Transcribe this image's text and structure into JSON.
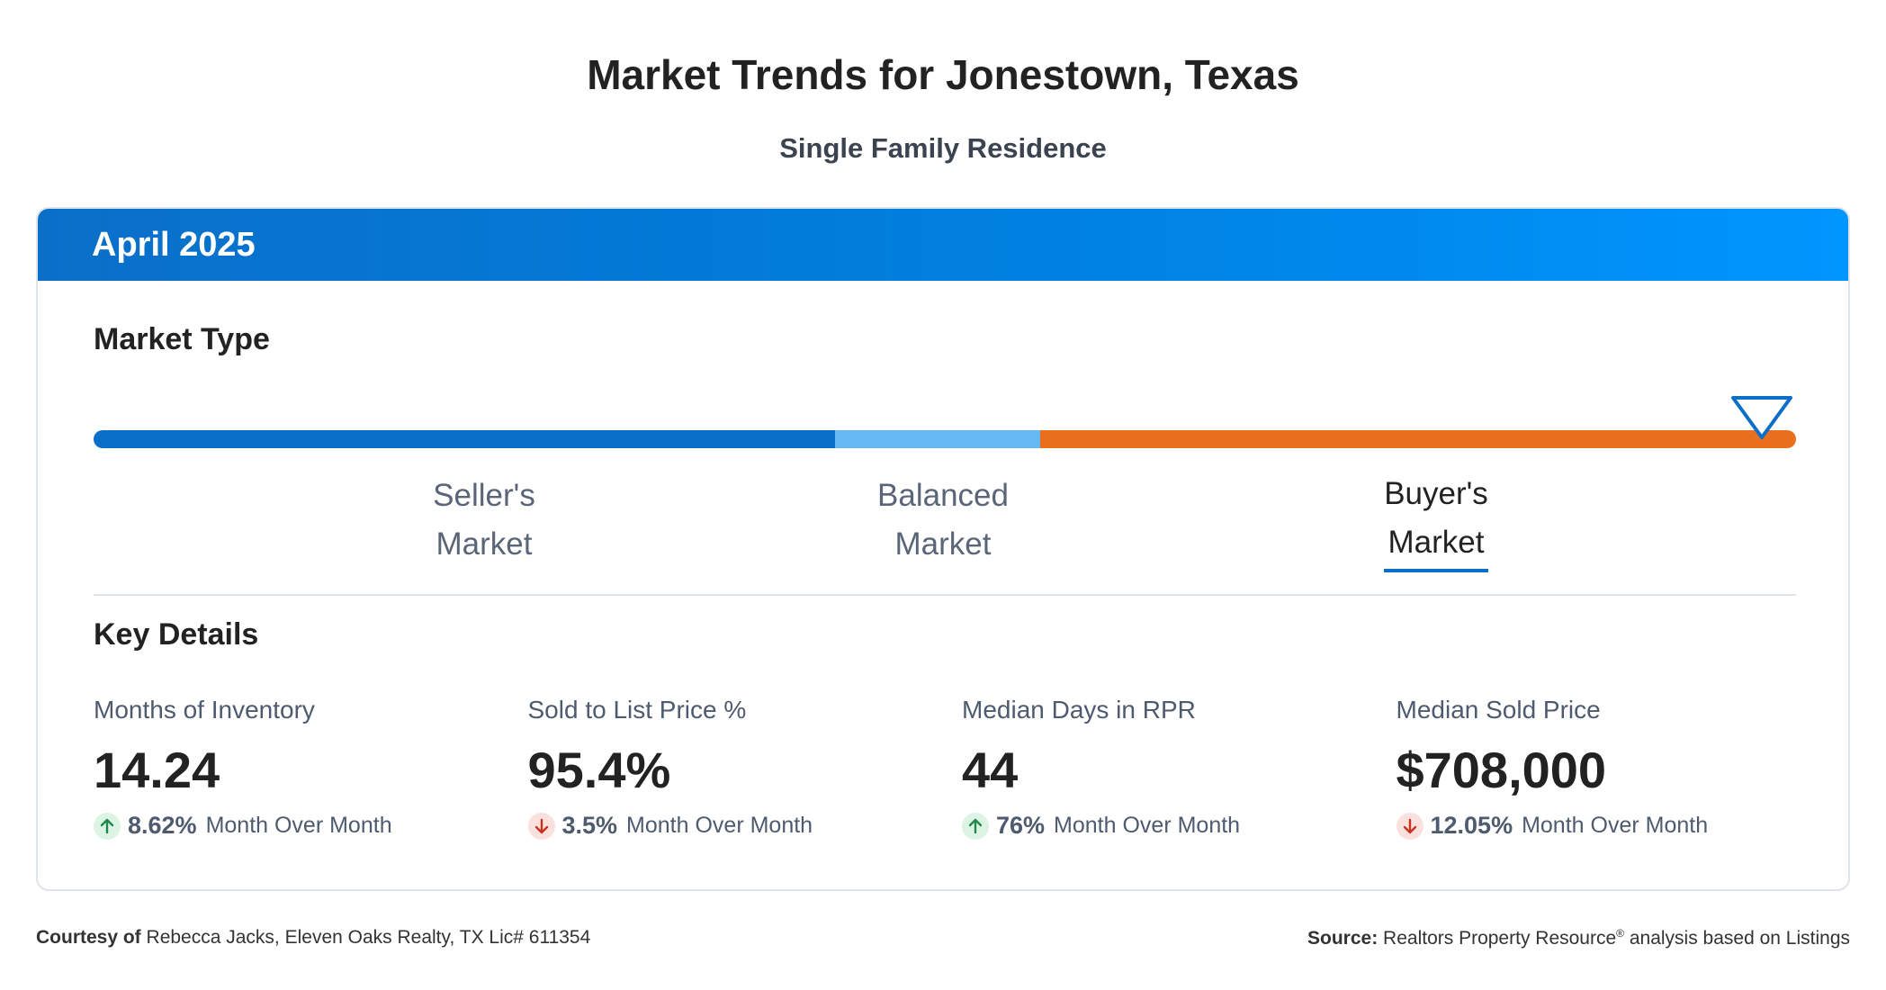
{
  "header": {
    "title": "Market Trends for Jonestown, Texas",
    "subtitle": "Single Family Residence"
  },
  "card": {
    "period": "April 2025",
    "market_type": {
      "heading": "Market Type",
      "labels": {
        "seller_line1": "Seller's",
        "seller_line2": "Market",
        "balanced_line1": "Balanced",
        "balanced_line2": "Market",
        "buyer_line1": "Buyer's",
        "buyer_line2": "Market"
      },
      "selected": "Buyer's Market",
      "indicator_fraction": 0.98,
      "colors": {
        "seller": "#0a6fc9",
        "balanced": "#66b8f3",
        "buyer": "#e86f1e"
      }
    },
    "key_details": {
      "heading": "Key Details",
      "stats": [
        {
          "label": "Months of Inventory",
          "value": "14.24",
          "change": "8.62%",
          "direction": "up",
          "change_text": "Month Over Month"
        },
        {
          "label": "Sold to List Price %",
          "value": "95.4%",
          "change": "3.5%",
          "direction": "down",
          "change_text": "Month Over Month"
        },
        {
          "label": "Median Days in RPR",
          "value": "44",
          "change": "76%",
          "direction": "up",
          "change_text": "Month Over Month"
        },
        {
          "label": "Median Sold Price",
          "value": "$708,000",
          "change": "12.05%",
          "direction": "down",
          "change_text": "Month Over Month"
        }
      ]
    }
  },
  "footer": {
    "courtesy_label": "Courtesy of",
    "courtesy_text": "Rebecca Jacks, Eleven Oaks Realty, TX Lic# 611354",
    "source_label": "Source:",
    "source_text_1": "Realtors Property Resource",
    "source_sup": "®",
    "source_text_2": "analysis based on Listings"
  },
  "icons": {
    "up": "arrow-up-icon",
    "down": "arrow-down-icon",
    "marker": "triangle-marker-icon"
  }
}
